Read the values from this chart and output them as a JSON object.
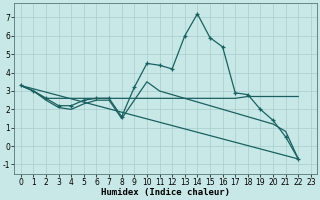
{
  "title": "",
  "xlabel": "Humidex (Indice chaleur)",
  "background_color": "#c8e8e8",
  "grid_color": "#a8cccc",
  "line_color": "#1a6060",
  "xlim": [
    -0.5,
    23.5
  ],
  "ylim": [
    -1.5,
    7.8
  ],
  "yticks": [
    -1,
    0,
    1,
    2,
    3,
    4,
    5,
    6,
    7
  ],
  "xticks": [
    0,
    1,
    2,
    3,
    4,
    5,
    6,
    7,
    8,
    9,
    10,
    11,
    12,
    13,
    14,
    15,
    16,
    17,
    18,
    19,
    20,
    21,
    22,
    23
  ],
  "line1_x": [
    0,
    1,
    2,
    3,
    4,
    5,
    6,
    7,
    8,
    9,
    10,
    11,
    12,
    13,
    14,
    15,
    16,
    17,
    18,
    19,
    20,
    21,
    22
  ],
  "line1_y": [
    3.3,
    3.0,
    2.6,
    2.2,
    2.2,
    2.5,
    2.6,
    2.6,
    1.6,
    3.2,
    4.5,
    4.4,
    4.2,
    6.0,
    7.2,
    5.9,
    5.4,
    2.9,
    2.8,
    2.0,
    1.4,
    0.5,
    -0.7
  ],
  "line2_x": [
    0,
    1,
    2,
    3,
    4,
    5,
    6,
    7,
    8,
    9,
    10,
    11,
    12,
    13,
    14,
    15,
    16,
    17,
    18,
    19,
    20,
    21,
    22
  ],
  "line2_y": [
    3.3,
    3.0,
    2.6,
    2.6,
    2.6,
    2.6,
    2.6,
    2.6,
    2.6,
    2.6,
    2.6,
    2.6,
    2.6,
    2.6,
    2.6,
    2.6,
    2.6,
    2.6,
    2.7,
    2.7,
    2.7,
    2.7,
    2.7
  ],
  "line3_x": [
    0,
    22
  ],
  "line3_y": [
    3.3,
    -0.7
  ],
  "line4_x": [
    0,
    1,
    2,
    3,
    4,
    5,
    6,
    7,
    8,
    9,
    10,
    11,
    12,
    13,
    14,
    15,
    16,
    17,
    18,
    19,
    20,
    21,
    22
  ],
  "line4_y": [
    3.3,
    3.0,
    2.5,
    2.1,
    2.0,
    2.3,
    2.5,
    2.5,
    1.5,
    2.5,
    3.5,
    3.0,
    2.8,
    2.6,
    2.4,
    2.2,
    2.0,
    1.8,
    1.6,
    1.4,
    1.2,
    0.8,
    -0.7
  ],
  "tick_fontsize": 5.5,
  "xlabel_fontsize": 6.5
}
